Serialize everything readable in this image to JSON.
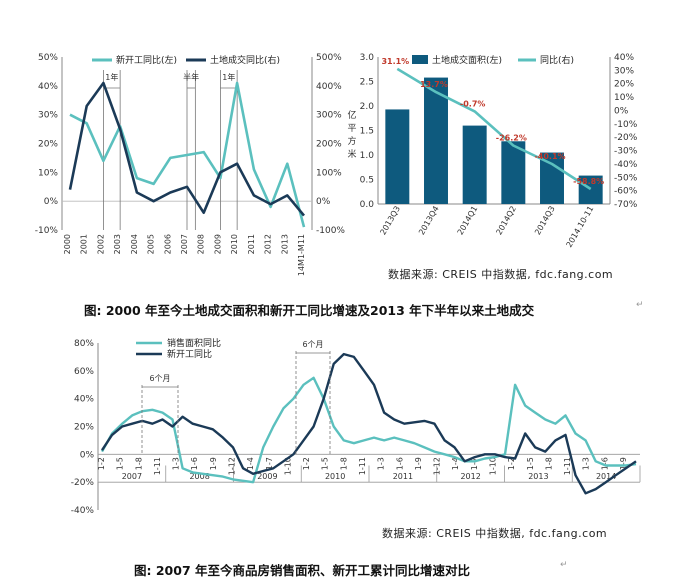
{
  "chart_data": [
    {
      "type": "line",
      "x": [
        "2000",
        "2001",
        "2002",
        "2003",
        "2004",
        "2005",
        "2006",
        "2007",
        "2008",
        "2009",
        "2010",
        "2011",
        "2012",
        "2013",
        "14M1-M11"
      ],
      "y_left_ticks": [
        "50%",
        "40%",
        "30%",
        "20%",
        "10%",
        "0%",
        "-10%"
      ],
      "y_right_ticks": [
        "500%",
        "400%",
        "300%",
        "200%",
        "100%",
        "0%",
        "-100%"
      ],
      "ylim_left": [
        -10,
        50
      ],
      "ylim_right": [
        -100,
        500
      ],
      "legend_position": "top",
      "series": [
        {
          "name": "新开工同比(左)",
          "axis": "left",
          "color": "#5bc0be",
          "values": [
            30,
            27,
            14,
            26,
            8,
            6,
            15,
            16,
            17,
            8,
            41,
            11,
            -2,
            13,
            -9
          ]
        },
        {
          "name": "土地成交同比(右)",
          "axis": "right",
          "color": "#1b3a57",
          "values": [
            40,
            330,
            410,
            250,
            30,
            0,
            30,
            50,
            -40,
            100,
            130,
            20,
            -10,
            20,
            -50
          ]
        }
      ],
      "annotations": [
        {
          "text": "1年",
          "x_from": "2002",
          "x_to": "2003"
        },
        {
          "text": "半年",
          "x_from": "2007",
          "x_to": "2007.5"
        },
        {
          "text": "1年",
          "x_from": "2009",
          "x_to": "2010"
        }
      ]
    },
    {
      "type": "bar",
      "categories": [
        "2013Q3",
        "2013Q4",
        "2014Q1",
        "2014Q2",
        "2014Q3",
        "2014.10-11"
      ],
      "y_left_label": "亿平方米",
      "y_left_ticks": [
        "3.0",
        "2.5",
        "2.0",
        "1.5",
        "1.0",
        "0.5",
        "0.0"
      ],
      "y_right_ticks": [
        "40%",
        "30%",
        "20%",
        "10%",
        "0%",
        "-10%",
        "-20%",
        "-30%",
        "-40%",
        "-50%",
        "-60%",
        "-70%"
      ],
      "ylim_left": [
        0,
        3
      ],
      "ylim_right": [
        -70,
        40
      ],
      "legend_position": "top",
      "series": [
        {
          "name": "土地成交面积(左)",
          "axis": "left",
          "kind": "bar",
          "color": "#0e5a7e",
          "values": [
            1.93,
            2.58,
            1.6,
            1.28,
            1.05,
            0.58
          ]
        },
        {
          "name": "同比(右)",
          "axis": "right",
          "kind": "line",
          "color": "#5bc0be",
          "values": [
            31.1,
            13.7,
            -0.7,
            -26.2,
            -40.1,
            -58.8
          ]
        }
      ],
      "data_labels": [
        "31.1%",
        "13.7%",
        "-0.7%",
        "-26.2%",
        "-40.1%",
        "-58.8%"
      ]
    },
    {
      "type": "line",
      "years": [
        "2007",
        "2008",
        "2009",
        "2010",
        "2011",
        "2012",
        "2013",
        "2014"
      ],
      "month_ticks": [
        "1-2",
        "1-5",
        "1-8",
        "1-11",
        "1-3",
        "1-6",
        "1-9",
        "1-12",
        "1-4",
        "1-7",
        "1-10",
        "1-2",
        "1-5",
        "1-8",
        "1-11",
        "1-3",
        "1-6",
        "1-9",
        "1-12",
        "1-4",
        "1-7",
        "1-10",
        "1-2",
        "1-5",
        "1-8",
        "1-11",
        "1-3",
        "1-6",
        "1-9"
      ],
      "y_ticks": [
        "80%",
        "60%",
        "40%",
        "20%",
        "0%",
        "-20%",
        "-40%"
      ],
      "ylim": [
        -40,
        80
      ],
      "legend_position": "top-left",
      "series": [
        {
          "name": "销售面积同比",
          "color": "#5bc0be",
          "values": [
            2,
            15,
            22,
            28,
            31,
            32,
            30,
            25,
            -10,
            -13,
            -14,
            -15,
            -16,
            -18,
            -19,
            -20,
            5,
            20,
            33,
            40,
            50,
            55,
            40,
            20,
            10,
            8,
            10,
            12,
            10,
            12,
            10,
            8,
            5,
            2,
            0,
            -2,
            -5,
            -5,
            -3,
            -2,
            0,
            50,
            35,
            30,
            25,
            22,
            28,
            15,
            10,
            -5,
            -8,
            -8,
            -8,
            -7
          ]
        },
        {
          "name": "新开工同比",
          "color": "#1b3a57",
          "values": [
            3,
            14,
            20,
            22,
            24,
            22,
            25,
            20,
            27,
            22,
            20,
            18,
            12,
            5,
            -10,
            -14,
            -12,
            -10,
            -5,
            0,
            10,
            20,
            40,
            65,
            72,
            70,
            60,
            50,
            30,
            25,
            22,
            23,
            24,
            22,
            10,
            5,
            -5,
            -2,
            0,
            0,
            -2,
            -3,
            15,
            5,
            2,
            10,
            14,
            -15,
            -28,
            -25,
            -20,
            -15,
            -10,
            -5
          ]
        }
      ],
      "annotations": [
        {
          "text": "6个月"
        },
        {
          "text": "6个月"
        }
      ]
    }
  ],
  "top": {
    "source": "数据来源: CREIS 中指数据, fdc.fang.com",
    "caption": "图: 2000 年至今土地成交面积和新开工同比增速及2013 年下半年以来土地成交"
  },
  "bottom": {
    "source": "数据来源: CREIS 中指数据, fdc.fang.com",
    "caption": "图: 2007 年至今商品房销售面积、新开工累计同比增速对比"
  }
}
